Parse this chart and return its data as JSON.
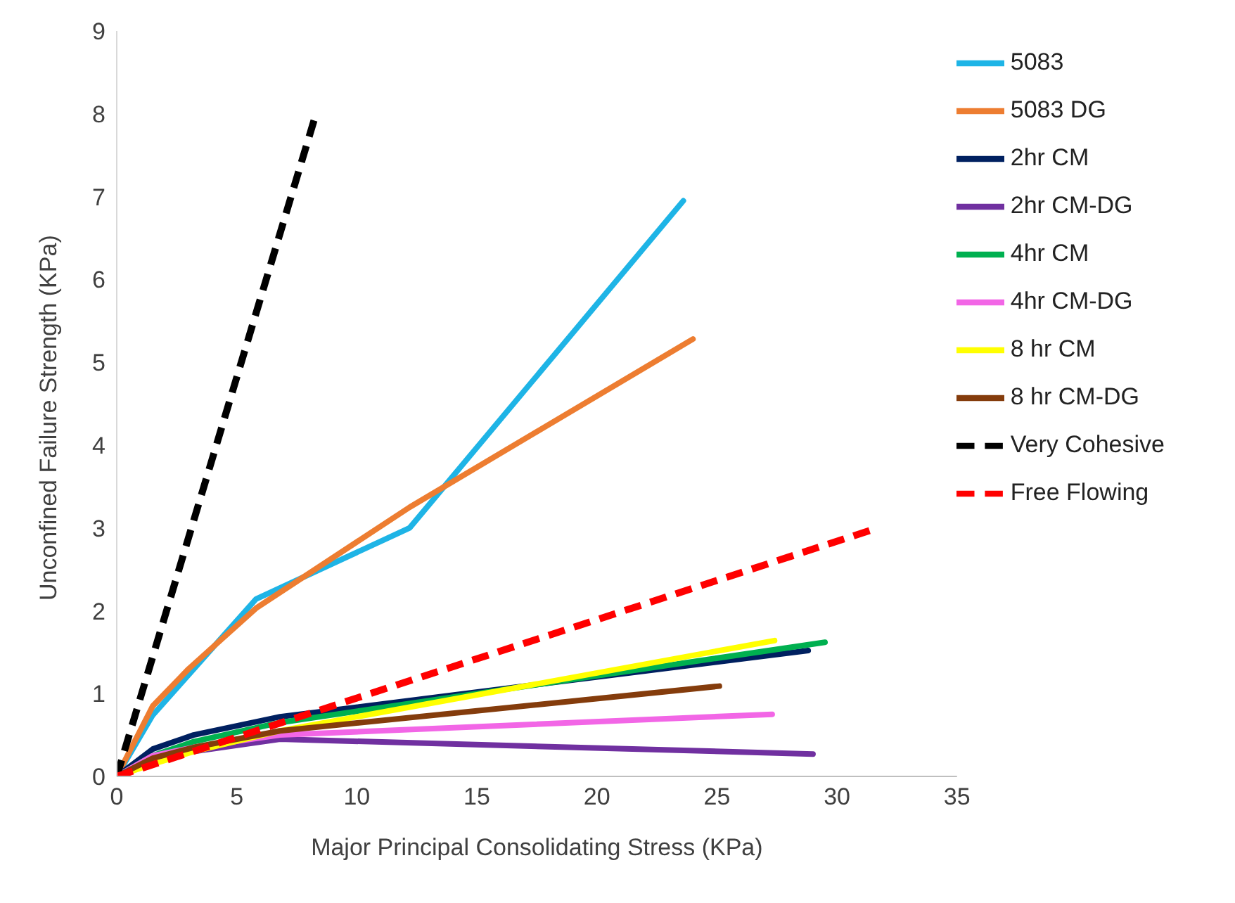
{
  "chart_data": {
    "type": "line",
    "xlabel": "Major Principal Consolidating Stress (KPa)",
    "ylabel": "Unconfined Failure Strength (KPa)",
    "xlim": [
      0,
      35
    ],
    "xticks": [
      0,
      5,
      10,
      15,
      20,
      25,
      30,
      35
    ],
    "ylim": [
      0,
      9
    ],
    "yticks": [
      0,
      1,
      2,
      3,
      4,
      5,
      6,
      7,
      8,
      9
    ],
    "grid": false,
    "legend": "top right",
    "marker": "none",
    "line_style": "solid",
    "series": [
      {
        "name": "5083",
        "color": "#1eb4e6",
        "x": [
          0,
          1.5,
          5.8,
          12.2,
          23.6
        ],
        "values": [
          0,
          0.74,
          2.14,
          3.0,
          6.95
        ]
      },
      {
        "name": "5083 DG",
        "color": "#ed7d31",
        "x": [
          0,
          1.5,
          3,
          5.8,
          12.2,
          24.0
        ],
        "values": [
          0,
          0.85,
          1.3,
          2.03,
          3.25,
          5.28
        ]
      },
      {
        "name": "2hr CM",
        "color": "#002060",
        "x": [
          0,
          1.5,
          3.2,
          6.8,
          28.8
        ],
        "values": [
          0,
          0.33,
          0.5,
          0.72,
          1.52
        ]
      },
      {
        "name": "2hr CM-DG",
        "color": "#7030a0",
        "x": [
          0,
          1.5,
          3.2,
          6.8,
          29.0
        ],
        "values": [
          0,
          0.22,
          0.3,
          0.45,
          0.27
        ]
      },
      {
        "name": "4hr CM",
        "color": "#00b050",
        "x": [
          0,
          1.5,
          3.2,
          6.8,
          29.5
        ],
        "values": [
          0,
          0.25,
          0.42,
          0.65,
          1.62
        ]
      },
      {
        "name": "4hr CM-DG",
        "color": "#f266e6",
        "x": [
          0,
          1.5,
          3.2,
          6.8,
          27.3
        ],
        "values": [
          0,
          0.25,
          0.35,
          0.5,
          0.75
        ]
      },
      {
        "name": "8 hr CM",
        "color": "#ffff00",
        "x": [
          0,
          1.5,
          3.2,
          6.8,
          27.4
        ],
        "values": [
          0,
          0.15,
          0.3,
          0.55,
          1.64
        ]
      },
      {
        "name": "8 hr CM-DG",
        "color": "#843c0c",
        "x": [
          0,
          1.5,
          3.2,
          6.8,
          25.1
        ],
        "values": [
          0,
          0.22,
          0.35,
          0.55,
          1.09
        ]
      },
      {
        "name": "Very Cohesive",
        "color": "#000000",
        "line_style": "dashed",
        "x": [
          0,
          8.3
        ],
        "values": [
          0,
          8
        ]
      },
      {
        "name": "Free Flowing",
        "color": "#ff0000",
        "line_style": "dashed",
        "x": [
          0,
          31.7
        ],
        "values": [
          0,
          3
        ]
      }
    ]
  }
}
